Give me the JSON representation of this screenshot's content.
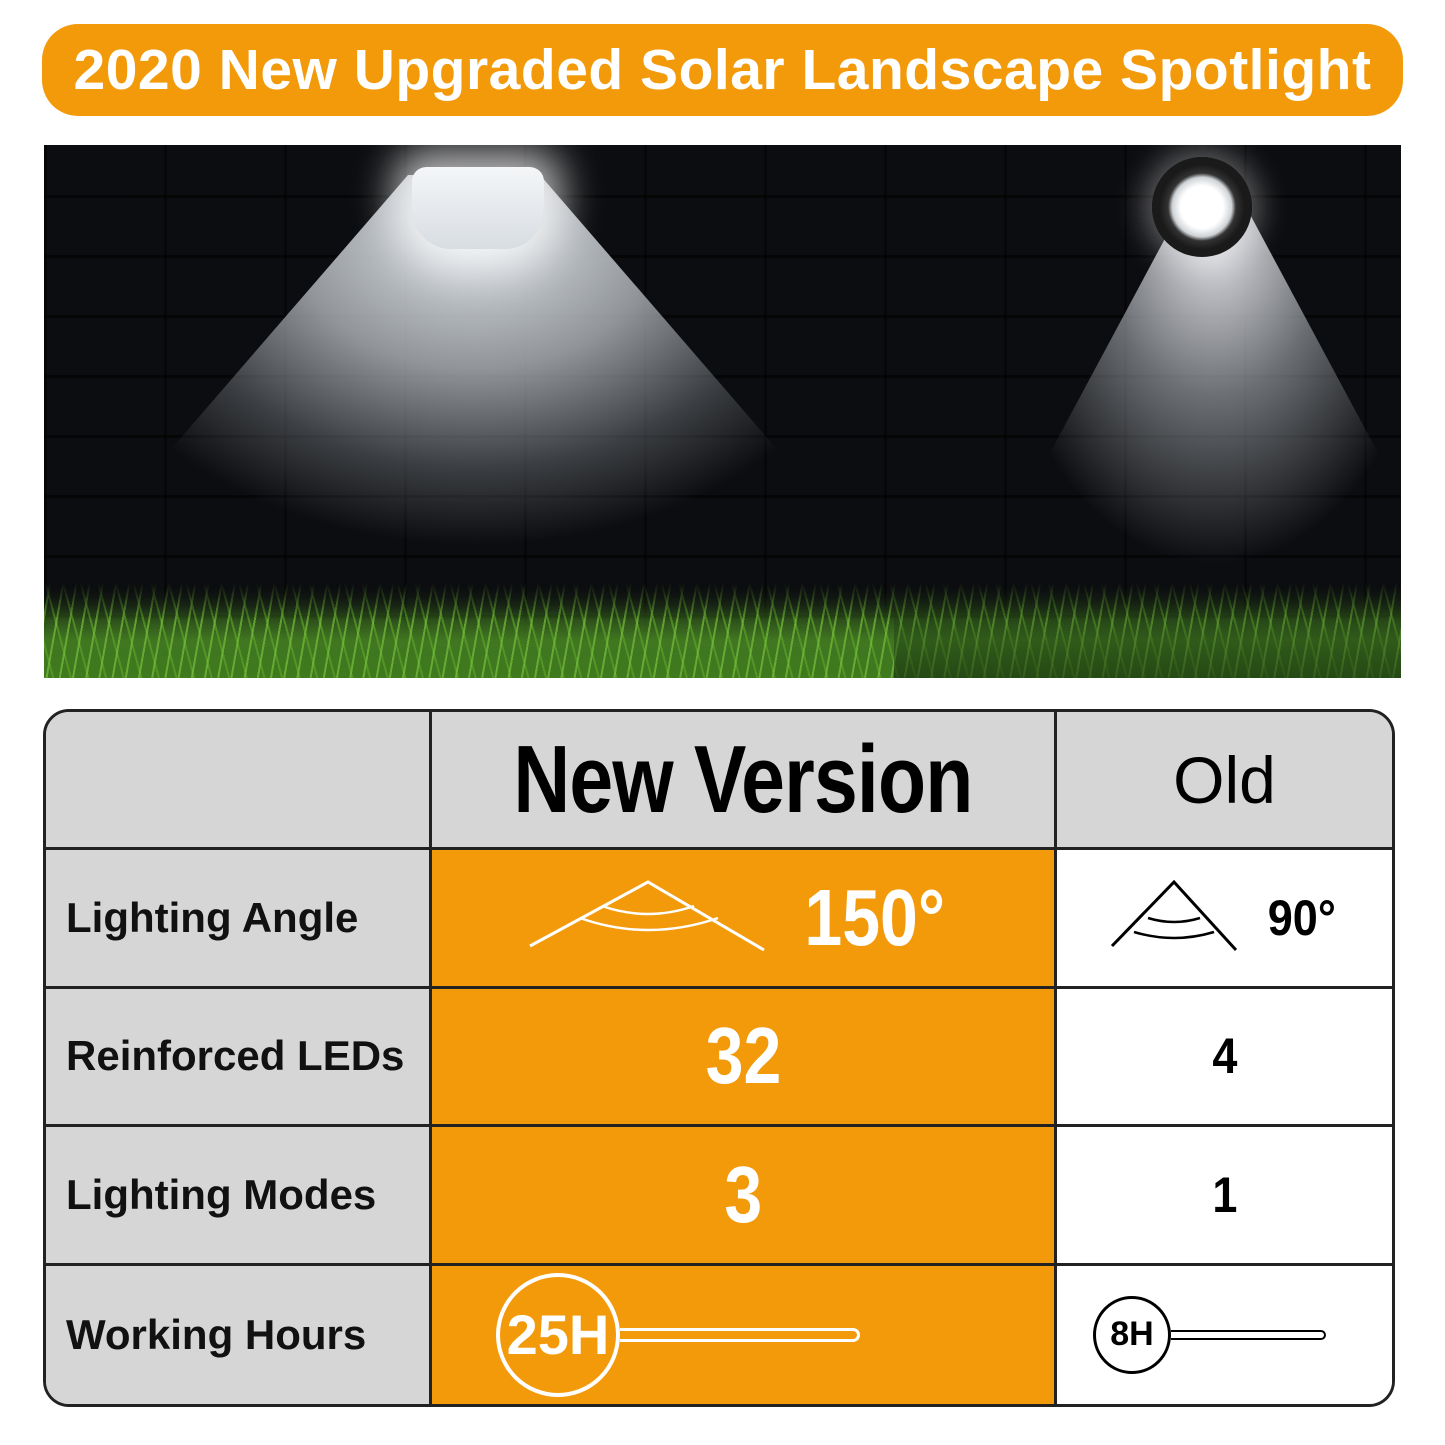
{
  "banner": {
    "title": "2020 New Upgraded Solar Landscape Spotlight"
  },
  "colors": {
    "accent": "#f39a0b",
    "header_gray": "#d6d6d6",
    "border": "#222222"
  },
  "table": {
    "headers": [
      "",
      "New Version",
      "Old"
    ],
    "rows": [
      {
        "label": "Lighting Angle",
        "new": "150°",
        "old": "90°",
        "icon": "lighting-angle-icon"
      },
      {
        "label": "Reinforced LEDs",
        "new": "32",
        "old": "4"
      },
      {
        "label": "Lighting Modes",
        "new": "3",
        "old": "1"
      },
      {
        "label": "Working Hours",
        "new": "25H",
        "old": "8H",
        "icon": "hours-gauge-icon"
      }
    ]
  }
}
